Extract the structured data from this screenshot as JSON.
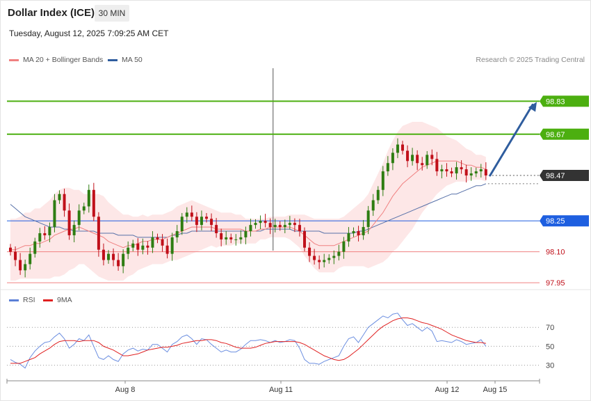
{
  "header": {
    "title": "Dollar Index (ICE)",
    "timeframe": "30 MIN"
  },
  "timestamp": "Tuesday, August 12, 2025 7:09:25 AM CET",
  "legend": {
    "ma20": {
      "label": "MA 20 + Bollinger Bands",
      "color": "#f08080"
    },
    "ma50": {
      "label": "MA 50",
      "color": "#2f5d9e"
    },
    "rsi": {
      "label": "RSI",
      "color": "#5b7fd6"
    },
    "rsi_ma": {
      "label": "9MA",
      "color": "#e02020"
    }
  },
  "credit": "Research © 2025 Trading Central",
  "colors": {
    "up": "#2e7d12",
    "down": "#c0101a",
    "resistance": "#4caf10",
    "pivot": "#1e5fe0",
    "support": "#f08080",
    "arrow": "#2f5d9e"
  },
  "chart_data": {
    "type": "candlestick",
    "instrument": "Dollar Index (ICE)",
    "interval": "30 MIN",
    "price_range": [
      97.93,
      98.99
    ],
    "levels": [
      {
        "value": 98.83,
        "label": "98.83",
        "kind": "resistance"
      },
      {
        "value": 98.67,
        "label": "98.67",
        "kind": "resistance"
      },
      {
        "value": 98.47,
        "label": "98.47",
        "kind": "last"
      },
      {
        "value": 98.25,
        "label": "98.25",
        "kind": "pivot"
      },
      {
        "value": 98.1,
        "label": "98.10",
        "kind": "support"
      },
      {
        "value": 97.95,
        "label": "97.95",
        "kind": "support"
      }
    ],
    "projection": {
      "from": 98.47,
      "to": 98.83
    },
    "x_ticks": [
      {
        "label": "Aug 8",
        "bar": 23
      },
      {
        "label": "Aug 11",
        "bar": 55
      },
      {
        "label": "Aug 12",
        "bar": 90
      },
      {
        "label": "Aug 15",
        "bar": 100
      }
    ],
    "closes": [
      98.1,
      98.06,
      98.01,
      98.04,
      98.09,
      98.15,
      98.19,
      98.18,
      98.22,
      98.35,
      98.38,
      98.3,
      98.18,
      98.23,
      98.3,
      98.32,
      98.4,
      98.27,
      98.11,
      98.06,
      98.09,
      98.06,
      98.03,
      98.09,
      98.12,
      98.14,
      98.11,
      98.13,
      98.12,
      98.17,
      98.16,
      98.13,
      98.09,
      98.17,
      98.2,
      98.27,
      98.29,
      98.27,
      98.23,
      98.27,
      98.26,
      98.23,
      98.19,
      98.16,
      98.17,
      98.16,
      98.16,
      98.17,
      98.2,
      98.23,
      98.24,
      98.25,
      98.24,
      98.22,
      98.23,
      98.22,
      98.23,
      98.24,
      98.23,
      98.2,
      98.12,
      98.08,
      98.06,
      98.05,
      98.06,
      98.07,
      98.08,
      98.1,
      98.15,
      98.19,
      98.2,
      98.18,
      98.22,
      98.3,
      98.35,
      98.4,
      98.49,
      98.53,
      98.58,
      98.62,
      98.59,
      98.54,
      98.57,
      98.53,
      98.52,
      98.57,
      98.55,
      98.49,
      98.5,
      98.49,
      98.48,
      98.51,
      98.5,
      98.47,
      98.48,
      98.49,
      98.5,
      98.47
    ],
    "ma20": [
      98.11,
      98.11,
      98.12,
      98.13,
      98.13,
      98.14,
      98.14,
      98.15,
      98.16,
      98.18,
      98.19,
      98.2,
      98.21,
      98.21,
      98.22,
      98.21,
      98.2,
      98.19,
      98.18,
      98.17,
      98.15,
      98.14,
      98.13,
      98.12,
      98.13,
      98.13,
      98.14,
      98.15,
      98.15,
      98.16,
      98.16,
      98.16,
      98.17,
      98.18,
      98.19,
      98.2,
      98.21,
      98.22,
      98.22,
      98.22,
      98.22,
      98.22,
      98.21,
      98.21,
      98.21,
      98.21,
      98.21,
      98.21,
      98.2,
      98.2,
      98.2,
      98.21,
      98.21,
      98.22,
      98.22,
      98.22,
      98.22,
      98.22,
      98.21,
      98.2,
      98.18,
      98.16,
      98.14,
      98.13,
      98.13,
      98.13,
      98.13,
      98.14,
      98.15,
      98.16,
      98.17,
      98.18,
      98.19,
      98.2,
      98.23,
      98.26,
      98.29,
      98.33,
      98.37,
      98.4,
      98.43,
      98.45,
      98.47,
      98.49,
      98.51,
      98.52,
      98.53,
      98.54,
      98.54,
      98.54,
      98.54,
      98.54,
      98.53,
      98.52,
      98.52,
      98.51,
      98.51,
      98.5
    ],
    "ma50": [
      98.33,
      98.31,
      98.29,
      98.27,
      98.26,
      98.25,
      98.24,
      98.23,
      98.22,
      98.22,
      98.22,
      98.21,
      98.21,
      98.2,
      98.2,
      98.2,
      98.2,
      98.2,
      98.19,
      98.19,
      98.19,
      98.19,
      98.18,
      98.18,
      98.18,
      98.18,
      98.17,
      98.17,
      98.17,
      98.17,
      98.17,
      98.17,
      98.17,
      98.18,
      98.18,
      98.19,
      98.19,
      98.2,
      98.2,
      98.2,
      98.2,
      98.2,
      98.2,
      98.2,
      98.2,
      98.2,
      98.2,
      98.2,
      98.2,
      98.2,
      98.2,
      98.2,
      98.21,
      98.21,
      98.21,
      98.21,
      98.21,
      98.21,
      98.2,
      98.2,
      98.2,
      98.2,
      98.2,
      98.2,
      98.19,
      98.19,
      98.19,
      98.19,
      98.19,
      98.19,
      98.19,
      98.2,
      98.2,
      98.21,
      98.22,
      98.23,
      98.24,
      98.25,
      98.26,
      98.27,
      98.28,
      98.29,
      98.3,
      98.31,
      98.32,
      98.33,
      98.34,
      98.35,
      98.36,
      98.37,
      98.38,
      98.38,
      98.39,
      98.4,
      98.41,
      98.42,
      98.42,
      98.43
    ],
    "bb_band_width": [
      0.15,
      0.15,
      0.15,
      0.16,
      0.16,
      0.17,
      0.17,
      0.18,
      0.19,
      0.2,
      0.21,
      0.21,
      0.2,
      0.19,
      0.18,
      0.17,
      0.18,
      0.19,
      0.2,
      0.2,
      0.19,
      0.18,
      0.17,
      0.16,
      0.15,
      0.14,
      0.13,
      0.13,
      0.12,
      0.12,
      0.12,
      0.12,
      0.12,
      0.12,
      0.13,
      0.13,
      0.13,
      0.13,
      0.12,
      0.11,
      0.1,
      0.09,
      0.09,
      0.08,
      0.08,
      0.08,
      0.07,
      0.07,
      0.06,
      0.06,
      0.06,
      0.05,
      0.05,
      0.05,
      0.05,
      0.05,
      0.05,
      0.06,
      0.07,
      0.08,
      0.1,
      0.11,
      0.12,
      0.13,
      0.13,
      0.13,
      0.13,
      0.12,
      0.12,
      0.13,
      0.14,
      0.15,
      0.16,
      0.18,
      0.2,
      0.22,
      0.24,
      0.26,
      0.27,
      0.28,
      0.28,
      0.27,
      0.26,
      0.24,
      0.22,
      0.2,
      0.18,
      0.16,
      0.14,
      0.12,
      0.11,
      0.1,
      0.09,
      0.08,
      0.07,
      0.06,
      0.06,
      0.06
    ],
    "rsi": {
      "range": [
        15,
        90
      ],
      "levels": [
        {
          "value": 70,
          "label": "70"
        },
        {
          "value": 50,
          "label": "50"
        },
        {
          "value": 30,
          "label": "30"
        }
      ],
      "values": [
        36,
        33,
        31,
        27,
        38,
        45,
        50,
        54,
        55,
        60,
        64,
        58,
        48,
        52,
        58,
        56,
        62,
        50,
        38,
        36,
        40,
        36,
        34,
        42,
        46,
        48,
        45,
        47,
        46,
        52,
        52,
        48,
        44,
        52,
        55,
        60,
        62,
        58,
        52,
        58,
        57,
        52,
        48,
        44,
        46,
        44,
        44,
        47,
        52,
        56,
        56,
        57,
        56,
        54,
        56,
        54,
        55,
        57,
        56,
        48,
        36,
        32,
        32,
        31,
        34,
        36,
        38,
        40,
        50,
        58,
        60,
        54,
        62,
        70,
        74,
        78,
        82,
        80,
        84,
        85,
        78,
        72,
        74,
        70,
        66,
        70,
        66,
        55,
        56,
        55,
        54,
        57,
        55,
        52,
        53,
        54,
        57,
        50
      ],
      "ma9": [
        32,
        32,
        32,
        34,
        36,
        38,
        42,
        45,
        48,
        52,
        55,
        56,
        56,
        56,
        55,
        56,
        56,
        56,
        54,
        50,
        48,
        46,
        43,
        40,
        40,
        41,
        42,
        44,
        46,
        47,
        48,
        49,
        49,
        50,
        51,
        53,
        54,
        55,
        56,
        56,
        57,
        57,
        56,
        54,
        53,
        51,
        49,
        48,
        48,
        48,
        49,
        51,
        53,
        54,
        55,
        55,
        55,
        55,
        55,
        54,
        52,
        49,
        46,
        43,
        40,
        38,
        36,
        35,
        36,
        39,
        43,
        47,
        52,
        57,
        62,
        67,
        71,
        74,
        77,
        79,
        80,
        80,
        79,
        77,
        75,
        74,
        72,
        70,
        68,
        65,
        62,
        60,
        58,
        56,
        55,
        54,
        54,
        53
      ]
    }
  }
}
